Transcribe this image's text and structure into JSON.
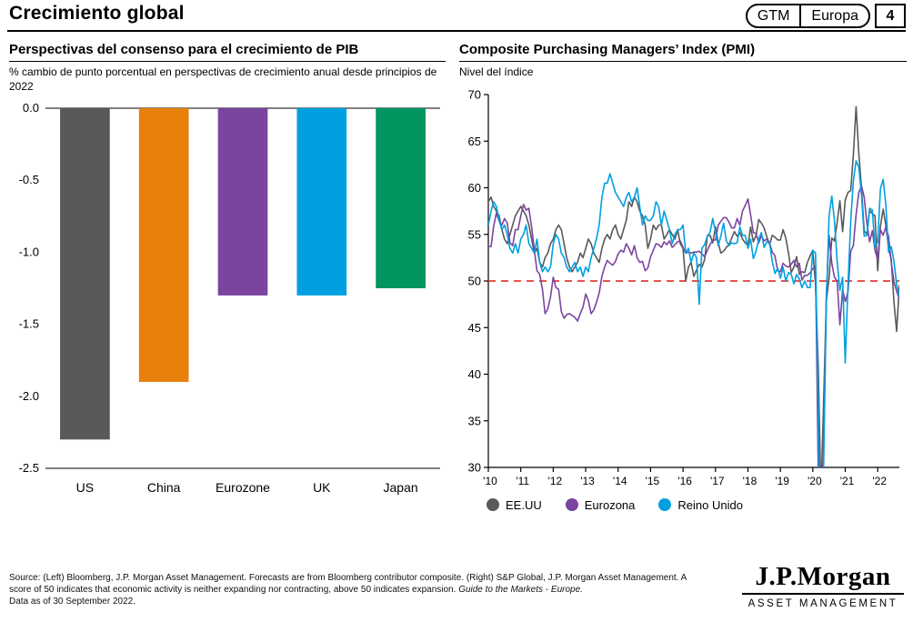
{
  "header": {
    "title": "Crecimiento global",
    "badge": {
      "gtm": "GTM",
      "region": "Europa",
      "page": "4"
    }
  },
  "left_chart": {
    "title": "Perspectivas del consenso para el crecimiento de PIB",
    "subtitle": "% cambio de punto porcentual en perspectivas de crecimiento anual desde principios de 2022"
  },
  "right_chart": {
    "title": "Composite Purchasing Managers’ Index (PMI)",
    "subtitle": "Nivel del índice"
  },
  "footer": {
    "source_text": "Source: (Left) Bloomberg, J.P. Morgan Asset Management. Forecasts are from Bloomberg contributor composite. (Right) S&P Global, J.P. Morgan Asset Management. A score of 50 indicates that economic activity is neither expanding nor contracting, above 50 indicates expansion. ",
    "source_italic": "Guide to the Markets - Europe.",
    "data_as_of": "Data as of 30 September 2022.",
    "logo_name": "J.P.Morgan",
    "logo_sub": "ASSET MANAGEMENT"
  },
  "colors": {
    "us_gray": "#58595B",
    "china_orange": "#E8800C",
    "eurozone_purple": "#7B44A0",
    "uk_blue": "#00A0E0",
    "japan_green": "#00945E",
    "reference_red": "#E03C31"
  },
  "chart_data": [
    {
      "type": "bar",
      "title": "Perspectivas del consenso para el crecimiento de PIB",
      "xlabel": "",
      "ylabel": "% punto porcentual",
      "categories": [
        "US",
        "China",
        "Eurozone",
        "UK",
        "Japan"
      ],
      "values": [
        -2.3,
        -1.9,
        -1.3,
        -1.3,
        -1.25
      ],
      "colors": [
        "#58595B",
        "#E8800C",
        "#7B44A0",
        "#00A0E0",
        "#00945E"
      ],
      "ylim": [
        -2.5,
        0
      ],
      "yticks": [
        0,
        -0.5,
        -1,
        -1.5,
        -2,
        -2.5
      ],
      "ytick_labels": [
        "0.0",
        "-0.5",
        "-1.0",
        "-1.5",
        "-2.0",
        "-2.5"
      ],
      "grid": false
    },
    {
      "type": "line",
      "title": "Composite Purchasing Managers’ Index (PMI)",
      "ylabel": "Nivel del índice",
      "ylim": [
        30,
        70
      ],
      "yticks": [
        30,
        35,
        40,
        45,
        50,
        55,
        60,
        65,
        70
      ],
      "x_start": "Jan 2010",
      "x_end": "Sep 2022",
      "x_frequency": "monthly",
      "x_tick_labels": [
        "'10",
        "'11",
        "'12",
        "'13",
        "'14",
        "'15",
        "'16",
        "'17",
        "'18",
        "'19",
        "'20",
        "'21",
        "'22"
      ],
      "months_per_tick": 12,
      "reference_line": 50,
      "reference_color": "#E03C31",
      "legend_position": "bottom",
      "grid": false,
      "series": [
        {
          "name": "EE.UU",
          "color": "#58595B",
          "values": [
            58.5,
            59.0,
            58.0,
            57.5,
            57.0,
            55.5,
            54.5,
            54.0,
            55.0,
            56.0,
            57.0,
            57.5,
            58.0,
            57.5,
            57.0,
            56.0,
            54.5,
            53.0,
            53.5,
            52.0,
            51.5,
            52.5,
            53.0,
            54.0,
            54.5,
            55.5,
            56.0,
            55.5,
            54.0,
            52.5,
            51.5,
            51.0,
            51.5,
            52.0,
            53.0,
            52.5,
            53.5,
            54.5,
            54.0,
            53.0,
            52.5,
            52.0,
            53.5,
            54.5,
            55.0,
            54.5,
            55.5,
            56.0,
            55.0,
            54.5,
            55.5,
            56.5,
            58.5,
            58.0,
            59.0,
            58.5,
            57.5,
            57.0,
            56.0,
            53.5,
            54.5,
            56.0,
            55.5,
            56.0,
            56.0,
            54.5,
            55.0,
            55.5,
            55.0,
            54.5,
            55.5,
            54.0,
            53.5,
            50.0,
            51.5,
            52.0,
            50.5,
            51.2,
            51.8,
            51.5,
            52.3,
            54.9,
            54.9,
            54.1,
            55.8,
            54.1,
            53.0,
            53.2,
            53.6,
            53.9,
            54.6,
            55.3,
            54.8,
            55.2,
            54.5,
            54.1,
            53.8,
            55.8,
            54.2,
            54.9,
            56.6,
            56.2,
            55.7,
            54.7,
            53.9,
            54.9,
            54.7,
            54.4,
            54.4,
            55.5,
            54.6,
            53.0,
            50.9,
            51.5,
            52.6,
            50.7,
            51.0,
            50.9,
            52.0,
            52.7,
            53.3,
            49.6,
            40.9,
            27.0,
            37.0,
            47.9,
            50.3,
            54.6,
            54.3,
            56.3,
            58.6,
            55.3,
            58.7,
            59.5,
            59.7,
            63.5,
            68.7,
            63.7,
            59.9,
            55.4,
            55.0,
            57.6,
            57.2,
            57.0,
            51.1,
            55.9,
            57.7,
            56.0,
            53.6,
            52.3,
            47.7,
            44.6,
            49.5
          ]
        },
        {
          "name": "Eurozona",
          "color": "#7B44A0",
          "values": [
            53.7,
            53.7,
            55.9,
            57.3,
            56.4,
            56.0,
            56.7,
            56.2,
            54.1,
            53.8,
            55.5,
            55.5,
            57.0,
            58.2,
            57.6,
            57.8,
            55.8,
            53.3,
            51.1,
            50.7,
            49.1,
            46.5,
            47.0,
            48.3,
            50.4,
            49.3,
            49.1,
            46.7,
            46.0,
            46.4,
            46.5,
            46.3,
            46.1,
            45.7,
            46.5,
            47.2,
            48.6,
            47.9,
            46.5,
            46.9,
            47.7,
            48.7,
            50.5,
            51.5,
            52.2,
            51.9,
            51.7,
            52.1,
            52.9,
            53.3,
            53.1,
            54.0,
            53.5,
            52.8,
            53.8,
            52.5,
            52.0,
            52.1,
            51.1,
            51.4,
            52.6,
            53.3,
            54.0,
            53.9,
            53.6,
            54.2,
            53.9,
            54.3,
            53.6,
            53.9,
            54.2,
            54.3,
            53.6,
            53.0,
            53.1,
            53.0,
            53.1,
            53.1,
            53.2,
            52.9,
            52.6,
            53.3,
            53.9,
            54.4,
            54.4,
            56.0,
            56.4,
            56.8,
            56.8,
            56.3,
            55.7,
            55.7,
            56.7,
            56.0,
            57.5,
            58.1,
            58.8,
            57.1,
            55.2,
            55.1,
            54.1,
            54.9,
            54.3,
            54.5,
            54.1,
            53.1,
            52.7,
            51.1,
            51.0,
            51.9,
            51.6,
            51.5,
            51.8,
            52.2,
            51.5,
            51.9,
            50.1,
            50.6,
            50.6,
            50.9,
            51.3,
            51.6,
            29.7,
            13.6,
            31.9,
            48.5,
            54.9,
            51.9,
            50.4,
            50.0,
            45.3,
            49.1,
            47.8,
            48.8,
            53.2,
            53.8,
            57.1,
            59.5,
            60.2,
            59.0,
            56.2,
            54.2,
            55.4,
            53.3,
            52.3,
            55.5,
            54.9,
            55.8,
            54.8,
            52.0,
            49.9,
            48.9,
            48.1
          ]
        },
        {
          "name": "Reino Unido",
          "color": "#00A0E0",
          "values": [
            56.0,
            57.5,
            58.5,
            58.0,
            56.5,
            55.5,
            56.0,
            55.0,
            53.5,
            53.0,
            54.0,
            53.0,
            54.5,
            55.0,
            56.0,
            54.0,
            53.5,
            53.0,
            54.5,
            52.0,
            51.0,
            51.5,
            51.0,
            51.5,
            54.0,
            55.0,
            54.5,
            53.0,
            52.5,
            51.5,
            51.0,
            51.5,
            52.0,
            51.0,
            51.5,
            50.5,
            51.5,
            51.0,
            52.5,
            53.5,
            54.5,
            56.0,
            59.0,
            60.5,
            60.5,
            61.5,
            60.5,
            59.5,
            59.0,
            58.5,
            58.0,
            59.0,
            59.5,
            58.5,
            59.0,
            60.0,
            58.0,
            56.0,
            57.0,
            56.5,
            56.5,
            57.0,
            58.5,
            58.0,
            56.0,
            57.5,
            56.5,
            55.5,
            54.0,
            55.0,
            55.5,
            55.5,
            56.0,
            53.0,
            53.5,
            52.0,
            53.0,
            52.5,
            47.5,
            53.5,
            53.9,
            54.8,
            55.2,
            56.7,
            55.3,
            53.8,
            54.8,
            56.2,
            54.3,
            53.8,
            54.1,
            54.0,
            54.1,
            55.8,
            54.9,
            54.9,
            53.5,
            54.5,
            52.4,
            53.2,
            54.5,
            55.2,
            53.6,
            54.2,
            54.1,
            52.1,
            50.8,
            51.4,
            50.3,
            51.5,
            50.0,
            50.9,
            50.7,
            49.7,
            50.7,
            50.2,
            49.3,
            50.0,
            49.3,
            49.3,
            53.3,
            53.0,
            36.0,
            13.8,
            30.0,
            47.7,
            57.0,
            59.1,
            56.5,
            52.1,
            49.0,
            50.4,
            41.2,
            49.6,
            56.4,
            60.7,
            62.9,
            62.2,
            59.2,
            54.8,
            54.9,
            57.8,
            57.6,
            53.6,
            54.2,
            59.9,
            60.9,
            58.2,
            53.1,
            53.7,
            52.1,
            49.6,
            48.4
          ]
        }
      ]
    }
  ]
}
